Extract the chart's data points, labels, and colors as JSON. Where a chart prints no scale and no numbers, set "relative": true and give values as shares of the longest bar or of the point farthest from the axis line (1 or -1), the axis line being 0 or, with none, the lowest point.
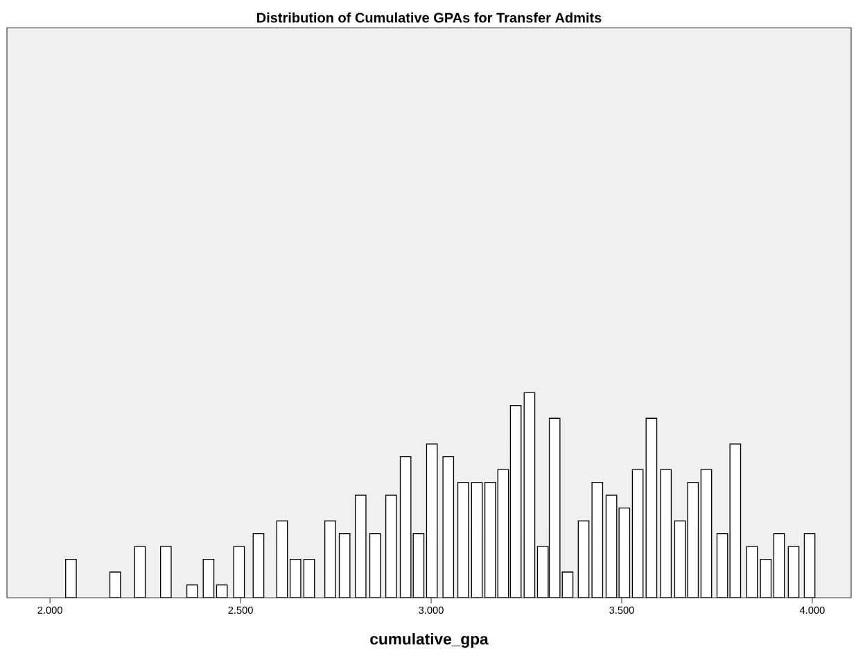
{
  "chart_data": {
    "type": "bar",
    "title": "Distribution of Cumulative GPAs for Transfer Admits",
    "xlabel": "cumulative_gpa",
    "xlim": [
      1.887,
      4.102
    ],
    "relative": true,
    "tick_labels": "x",
    "xticks": [
      {
        "value": 2,
        "label": "2.000"
      },
      {
        "value": 2.5,
        "label": "2.500"
      },
      {
        "value": 3,
        "label": "3.000"
      },
      {
        "value": 3.5,
        "label": "3.500"
      },
      {
        "value": 4,
        "label": "4.000"
      }
    ],
    "x": [
      2.055,
      2.171,
      2.236,
      2.304,
      2.373,
      2.416,
      2.451,
      2.496,
      2.547,
      2.609,
      2.644,
      2.68,
      2.735,
      2.773,
      2.815,
      2.853,
      2.895,
      2.933,
      2.967,
      3.002,
      3.045,
      3.084,
      3.12,
      3.155,
      3.189,
      3.222,
      3.258,
      3.293,
      3.324,
      3.358,
      3.4,
      3.436,
      3.473,
      3.507,
      3.542,
      3.578,
      3.616,
      3.653,
      3.687,
      3.722,
      3.764,
      3.798,
      3.842,
      3.878,
      3.913,
      3.951,
      3.993
    ],
    "series": [
      {
        "color": "#ffffff",
        "values": [
          0.1875,
          0.125,
          0.25,
          0.25,
          0.0625,
          0.1875,
          0.0625,
          0.25,
          0.3125,
          0.375,
          0.1875,
          0.1875,
          0.375,
          0.3125,
          0.5,
          0.3125,
          0.5,
          0.6875,
          0.3125,
          0.75,
          0.6875,
          0.5625,
          0.5625,
          0.5625,
          0.625,
          0.9375,
          1,
          0.25,
          0.875,
          0.125,
          0.375,
          0.5625,
          0.5,
          0.4375,
          0.625,
          0.875,
          0.625,
          0.375,
          0.5625,
          0.625,
          0.3125,
          0.75,
          0.25,
          0.1875,
          0.3125,
          0.25,
          0.3125
        ]
      }
    ]
  }
}
